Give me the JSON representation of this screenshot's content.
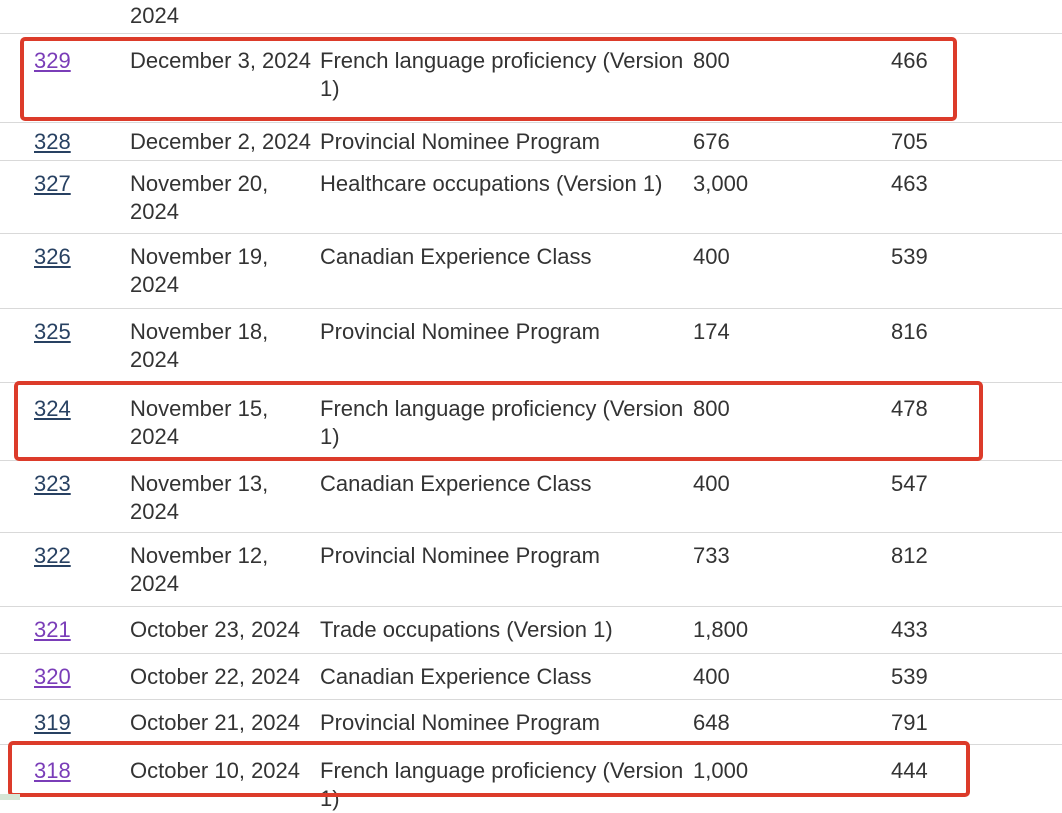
{
  "colors": {
    "text": "#333333",
    "link": "#284162",
    "visited_link": "#7a3db8",
    "highlight_red": "#dc3b2a",
    "row_separator": "#d9d9d9",
    "footer_green": "#d6e6d6"
  },
  "table": {
    "rows": [
      {
        "id": "",
        "date": "2024",
        "program": "",
        "invitations": "",
        "score": "",
        "visited": false,
        "highlighted": false
      },
      {
        "id": "329",
        "date": "December 3, 2024",
        "program": "French language proficiency (Version 1)",
        "invitations": "800",
        "score": "466",
        "visited": true,
        "highlighted": true
      },
      {
        "id": "328",
        "date": "December 2, 2024",
        "program": "Provincial Nominee Program",
        "invitations": "676",
        "score": "705",
        "visited": false,
        "highlighted": false
      },
      {
        "id": "327",
        "date": "November 20, 2024",
        "program": "Healthcare occupations (Version 1)",
        "invitations": "3,000",
        "score": "463",
        "visited": false,
        "highlighted": false
      },
      {
        "id": "326",
        "date": "November 19, 2024",
        "program": "Canadian Experience Class",
        "invitations": "400",
        "score": "539",
        "visited": false,
        "highlighted": false
      },
      {
        "id": "325",
        "date": "November 18, 2024",
        "program": "Provincial Nominee Program",
        "invitations": "174",
        "score": "816",
        "visited": false,
        "highlighted": false
      },
      {
        "id": "324",
        "date": "November 15, 2024",
        "program": "French language proficiency (Version 1)",
        "invitations": "800",
        "score": "478",
        "visited": false,
        "highlighted": true
      },
      {
        "id": "323",
        "date": "November 13, 2024",
        "program": "Canadian Experience Class",
        "invitations": "400",
        "score": "547",
        "visited": false,
        "highlighted": false
      },
      {
        "id": "322",
        "date": "November 12, 2024",
        "program": "Provincial Nominee Program",
        "invitations": "733",
        "score": "812",
        "visited": false,
        "highlighted": false
      },
      {
        "id": "321",
        "date": "October 23, 2024",
        "program": "Trade occupations (Version 1)",
        "invitations": "1,800",
        "score": "433",
        "visited": true,
        "highlighted": false
      },
      {
        "id": "320",
        "date": "October 22, 2024",
        "program": "Canadian Experience Class",
        "invitations": "400",
        "score": "539",
        "visited": true,
        "highlighted": false
      },
      {
        "id": "319",
        "date": "October 21, 2024",
        "program": "Provincial Nominee Program",
        "invitations": "648",
        "score": "791",
        "visited": false,
        "highlighted": false
      },
      {
        "id": "318",
        "date": "October 10, 2024",
        "program": "French language proficiency (Version 1)",
        "invitations": "1,000",
        "score": "444",
        "visited": true,
        "highlighted": true
      }
    ]
  },
  "annotations": {
    "highlighted_rows": [
      "329",
      "324",
      "318"
    ]
  }
}
